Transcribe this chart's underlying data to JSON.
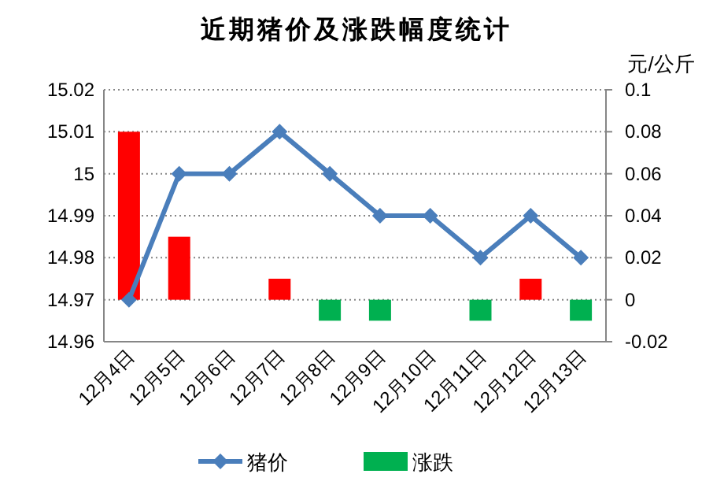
{
  "chart_data": {
    "type": "bar",
    "title": "近期猪价及涨跌幅度统计",
    "y2label": "元/公斤",
    "categories": [
      "12月4日",
      "12月5日",
      "12月6日",
      "12月7日",
      "12月8日",
      "12月9日",
      "12月10日",
      "12月11日",
      "12月12日",
      "12月13日"
    ],
    "series": [
      {
        "name": "猪价",
        "type": "line",
        "color": "#4a7ebb",
        "marker": "diamond",
        "values": [
          14.97,
          15.0,
          15.0,
          15.01,
          15.0,
          14.99,
          14.99,
          14.98,
          14.99,
          14.98
        ]
      },
      {
        "name": "涨跌",
        "axis": "y2",
        "color": "#00b050",
        "colors": [
          "#ff0000",
          "#ff0000",
          "#ff0000",
          "#ff0000",
          "#00b050",
          "#00b050",
          "#00b050",
          "#00b050",
          "#ff0000",
          "#00b050"
        ],
        "values": [
          0.08,
          0.03,
          0,
          0.01,
          -0.01,
          -0.01,
          0,
          -0.01,
          0.01,
          -0.01
        ]
      }
    ],
    "ylim": [
      14.96,
      15.02
    ],
    "yticks": [
      14.96,
      14.97,
      14.98,
      14.99,
      15,
      15.01,
      15.02
    ],
    "y2lim": [
      -0.02,
      0.1
    ],
    "y2ticks": [
      -0.02,
      0,
      0.02,
      0.04,
      0.06,
      0.08,
      0.1
    ],
    "grid": "y",
    "legend": "bottom"
  }
}
